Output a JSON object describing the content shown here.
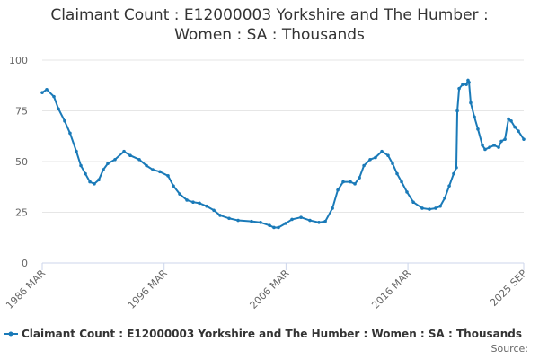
{
  "chart_data": {
    "type": "line",
    "title": "Claimant Count : E12000003 Yorkshire and The Humber : Women : SA : Thousands",
    "source": "Source:",
    "x": [
      1986.17,
      1986.54,
      1987.13,
      1987.5,
      1988.01,
      1988.45,
      1988.97,
      1989.34,
      1989.71,
      1990.08,
      1990.44,
      1990.81,
      1991.18,
      1991.55,
      1992.14,
      1992.88,
      1993.39,
      1994.13,
      1994.72,
      1995.24,
      1995.82,
      1996.49,
      1996.93,
      1997.45,
      1998.04,
      1998.55,
      1999.07,
      1999.66,
      2000.25,
      2000.76,
      2001.5,
      2002.24,
      2003.34,
      2004.08,
      2004.82,
      2005.18,
      2005.55,
      2006.14,
      2006.66,
      2007.4,
      2008.13,
      2008.87,
      2009.39,
      2009.98,
      2010.42,
      2010.86,
      2011.45,
      2011.82,
      2012.19,
      2012.56,
      2013.07,
      2013.51,
      2014.03,
      2014.54,
      2014.91,
      2015.28,
      2015.65,
      2016.09,
      2016.61,
      2017.34,
      2017.93,
      2018.45,
      2018.82,
      2019.19,
      2019.56,
      2019.92,
      2020.14,
      2020.22,
      2020.37,
      2020.66,
      2020.96,
      2021.1,
      2021.18,
      2021.32,
      2021.62,
      2021.91,
      2022.28,
      2022.5,
      2022.87,
      2023.24,
      2023.61,
      2023.83,
      2024.13,
      2024.42,
      2024.64,
      2024.94,
      2025.23,
      2025.67
    ],
    "series": [
      {
        "name": "Claimant Count : E12000003 Yorkshire and The Humber : Women : SA : Thousands",
        "color": "#1a7ab8",
        "values": [
          84,
          85.5,
          82,
          76,
          70,
          64,
          55,
          48,
          44,
          40,
          39,
          41,
          46,
          49,
          51,
          55,
          53,
          51,
          48,
          46,
          45,
          43,
          38,
          34,
          31,
          30,
          29.5,
          28,
          26,
          23.5,
          22,
          21,
          20.5,
          20,
          18.5,
          17.5,
          17.5,
          19.5,
          21.5,
          22.5,
          21,
          20,
          20.5,
          27,
          36,
          40,
          40,
          39,
          42,
          48,
          51,
          52,
          55,
          53,
          49,
          44,
          40,
          35,
          30,
          27,
          26.5,
          27,
          28,
          32,
          38,
          44,
          47,
          75,
          86,
          88,
          88,
          90,
          89,
          79,
          72,
          66,
          58,
          56,
          57,
          58,
          57,
          60,
          61,
          71,
          70,
          67,
          65,
          61
        ]
      }
    ],
    "xlim": [
      1986.17,
      2025.67
    ],
    "xticks": [
      {
        "value": 1986.17,
        "label": "1986 MAR"
      },
      {
        "value": 1996.17,
        "label": "1996 MAR"
      },
      {
        "value": 2006.17,
        "label": "2006 MAR"
      },
      {
        "value": 2016.17,
        "label": "2016 MAR"
      },
      {
        "value": 2025.67,
        "label": "2025 SEP"
      }
    ],
    "ylim": [
      0,
      100
    ],
    "yticks": [
      0,
      25,
      50,
      75,
      100
    ],
    "grid": true
  }
}
